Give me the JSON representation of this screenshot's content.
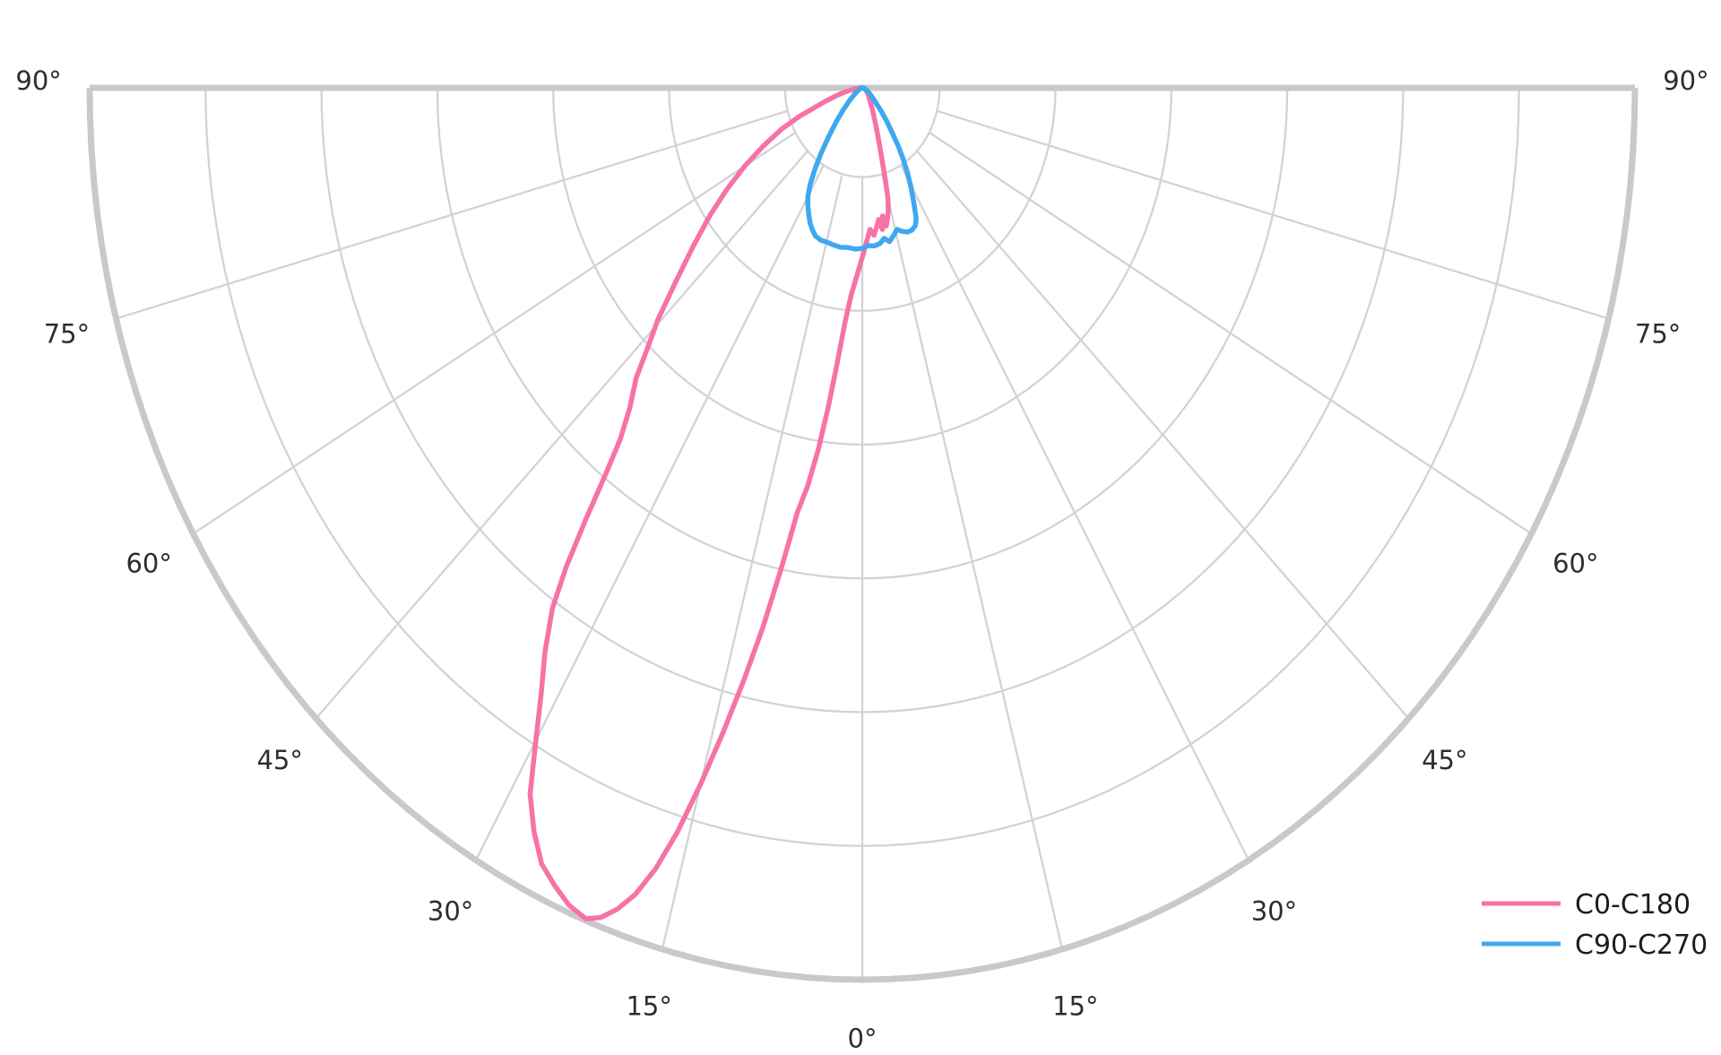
{
  "figure": {
    "background_color": "#ffffff",
    "grid_color": "#d3d3d3",
    "frame_color": "#c9c9c9",
    "label_color": "#2d2d2d",
    "legend_text_color": "#1c1c1c"
  },
  "chart_data": {
    "type": "polar",
    "subtype": "photometric_intensity_distribution",
    "title": "",
    "angle_axis": {
      "min_deg": -90,
      "max_deg": 90,
      "tick_step_deg": 15,
      "zero_direction": "down",
      "labels_show_absolute_degrees": true
    },
    "radial_axis": {
      "max": 1.0,
      "ring_fractions": [
        0.1,
        0.25,
        0.4,
        0.55,
        0.7,
        0.85,
        1.0
      ],
      "spoke_inner_fraction": 0.1,
      "tick_labels_visible": false
    },
    "angle_labels": [
      {
        "angle": -90,
        "text": "90°"
      },
      {
        "angle": -75,
        "text": "75°"
      },
      {
        "angle": -60,
        "text": "60°"
      },
      {
        "angle": -45,
        "text": "45°"
      },
      {
        "angle": -30,
        "text": "30°"
      },
      {
        "angle": -15,
        "text": "15°"
      },
      {
        "angle": 0,
        "text": "0°"
      },
      {
        "angle": 15,
        "text": "15°"
      },
      {
        "angle": 30,
        "text": "30°"
      },
      {
        "angle": 45,
        "text": "45°"
      },
      {
        "angle": 60,
        "text": "60°"
      },
      {
        "angle": 75,
        "text": "75°"
      },
      {
        "angle": 90,
        "text": "90°"
      }
    ],
    "series": [
      {
        "name": "C0-C180",
        "color": "#f672a7",
        "points": [
          [
            90,
            0.002
          ],
          [
            70,
            0.004
          ],
          [
            55,
            0.007
          ],
          [
            45,
            0.011
          ],
          [
            36,
            0.016
          ],
          [
            30,
            0.024
          ],
          [
            26,
            0.033
          ],
          [
            23,
            0.044
          ],
          [
            20.5,
            0.058
          ],
          [
            18.5,
            0.074
          ],
          [
            17,
            0.092
          ],
          [
            16,
            0.11
          ],
          [
            15,
            0.128
          ],
          [
            13.8,
            0.141
          ],
          [
            12.3,
            0.152
          ],
          [
            11.3,
            0.158
          ],
          [
            10.4,
            0.146
          ],
          [
            9.3,
            0.161
          ],
          [
            8.2,
            0.149
          ],
          [
            6.8,
            0.157
          ],
          [
            5.2,
            0.166
          ],
          [
            3.6,
            0.159
          ],
          [
            1.8,
            0.173
          ],
          [
            0,
            0.19
          ],
          [
            -2,
            0.212
          ],
          [
            -3.5,
            0.232
          ],
          [
            -4.8,
            0.262
          ],
          [
            -6,
            0.31
          ],
          [
            -7,
            0.36
          ],
          [
            -8,
            0.41
          ],
          [
            -9,
            0.452
          ],
          [
            -10,
            0.483
          ],
          [
            -11,
            0.548
          ],
          [
            -12,
            0.618
          ],
          [
            -13,
            0.682
          ],
          [
            -14,
            0.745
          ],
          [
            -15,
            0.808
          ],
          [
            -16,
            0.868
          ],
          [
            -17,
            0.916
          ],
          [
            -18,
            0.951
          ],
          [
            -19,
            0.974
          ],
          [
            -20,
            0.99
          ],
          [
            -21,
            0.998
          ],
          [
            -22.5,
            0.992
          ],
          [
            -24,
            0.979
          ],
          [
            -25.5,
            0.964
          ],
          [
            -27,
            0.936
          ],
          [
            -28.5,
            0.901
          ],
          [
            -30,
            0.845
          ],
          [
            -31.5,
            0.795
          ],
          [
            -33,
            0.754
          ],
          [
            -34.5,
            0.708
          ],
          [
            -35.5,
            0.66
          ],
          [
            -36.5,
            0.601
          ],
          [
            -37.5,
            0.545
          ],
          [
            -38.5,
            0.503
          ],
          [
            -40,
            0.468
          ],
          [
            -42,
            0.437
          ],
          [
            -43.5,
            0.405
          ],
          [
            -45.5,
            0.371
          ],
          [
            -48,
            0.325
          ],
          [
            -51,
            0.281
          ],
          [
            -54,
            0.244
          ],
          [
            -57,
            0.209
          ],
          [
            -60,
            0.176
          ],
          [
            -63,
            0.144
          ],
          [
            -66,
            0.115
          ],
          [
            -68.5,
            0.088
          ],
          [
            -70.5,
            0.064
          ],
          [
            -72.5,
            0.05
          ],
          [
            -75.5,
            0.034
          ],
          [
            -79,
            0.021
          ],
          [
            -83,
            0.011
          ],
          [
            -87,
            0.005
          ],
          [
            -90,
            0.002
          ]
        ]
      },
      {
        "name": "C90-C270",
        "color": "#3fa8f0",
        "points": [
          [
            90,
            0.001
          ],
          [
            72,
            0.004
          ],
          [
            60,
            0.009
          ],
          [
            52,
            0.015
          ],
          [
            46.5,
            0.024
          ],
          [
            43,
            0.036
          ],
          [
            40,
            0.05
          ],
          [
            37.5,
            0.064
          ],
          [
            35.5,
            0.08
          ],
          [
            33.5,
            0.096
          ],
          [
            31.5,
            0.112
          ],
          [
            29.5,
            0.128
          ],
          [
            27.5,
            0.144
          ],
          [
            25.5,
            0.162
          ],
          [
            24,
            0.169
          ],
          [
            22,
            0.172
          ],
          [
            20,
            0.172
          ],
          [
            17.8,
            0.169
          ],
          [
            15.8,
            0.165
          ],
          [
            13.5,
            0.171
          ],
          [
            11.5,
            0.176
          ],
          [
            9.5,
            0.171
          ],
          [
            7.5,
            0.176
          ],
          [
            5,
            0.178
          ],
          [
            2.5,
            0.177
          ],
          [
            0,
            0.18
          ],
          [
            -3,
            0.181
          ],
          [
            -6,
            0.18
          ],
          [
            -9,
            0.181
          ],
          [
            -12,
            0.18
          ],
          [
            -15,
            0.179
          ],
          [
            -17.5,
            0.179
          ],
          [
            -20,
            0.177
          ],
          [
            -22,
            0.172
          ],
          [
            -24,
            0.166
          ],
          [
            -26,
            0.158
          ],
          [
            -28,
            0.15
          ],
          [
            -30,
            0.141
          ],
          [
            -32,
            0.127
          ],
          [
            -34,
            0.109
          ],
          [
            -36,
            0.091
          ],
          [
            -38.5,
            0.07
          ],
          [
            -41.5,
            0.051
          ],
          [
            -45,
            0.035
          ],
          [
            -49,
            0.022
          ],
          [
            -54,
            0.013
          ],
          [
            -61,
            0.007
          ],
          [
            -70,
            0.003
          ],
          [
            -90,
            0.001
          ]
        ]
      }
    ],
    "legend": {
      "position": "lower-right",
      "entries": [
        "C0-C180",
        "C90-C270"
      ]
    }
  }
}
